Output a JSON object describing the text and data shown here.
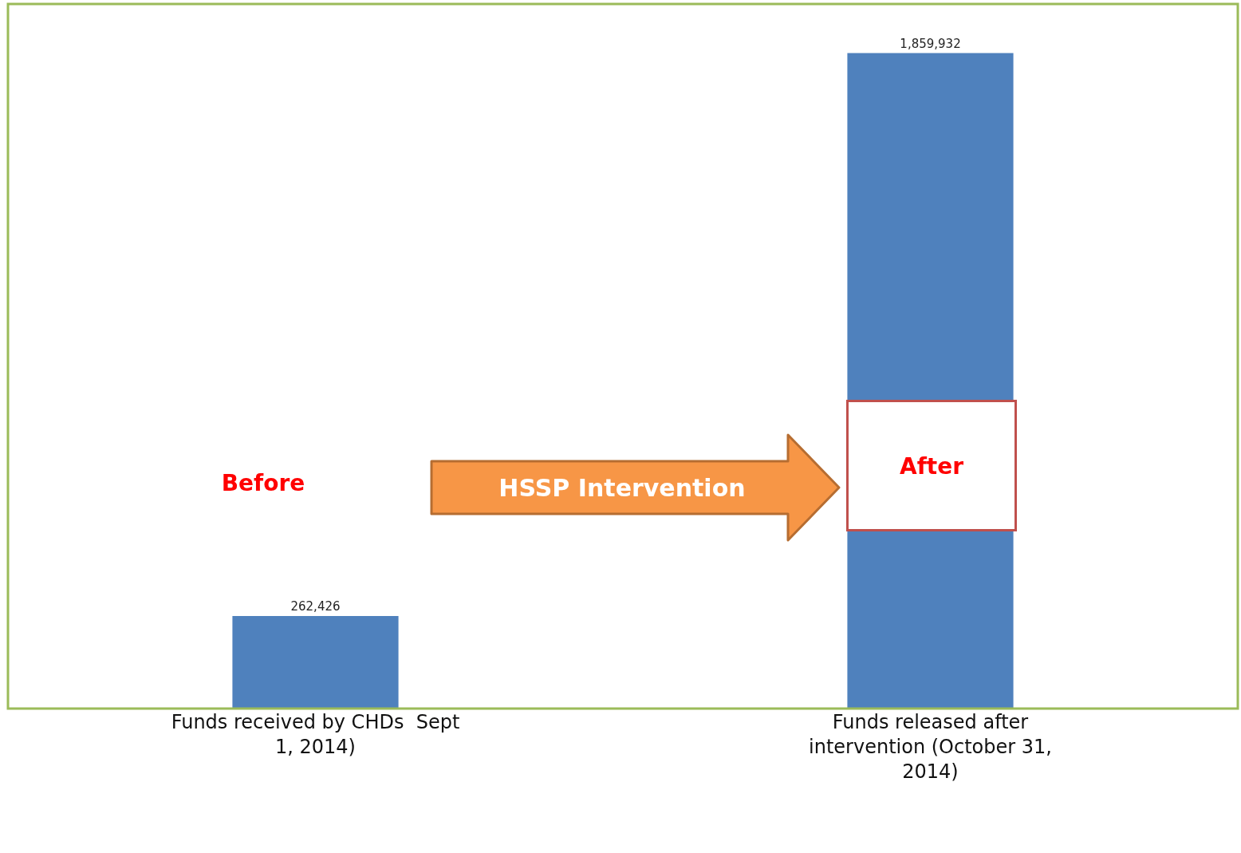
{
  "chart_data": {
    "type": "bar",
    "categories": [
      "Funds received by CHDs  Sept 1, 2014)",
      "Funds released after intervention (October 31, 2014)"
    ],
    "values": [
      262426,
      1859932
    ],
    "value_labels": [
      "262,426",
      "1,859,932"
    ],
    "color": "#4f81bd",
    "grid": false,
    "legend": false,
    "tick_labels": "x",
    "annotations": [
      "Before",
      "HSSP Intervention",
      "After"
    ]
  }
}
